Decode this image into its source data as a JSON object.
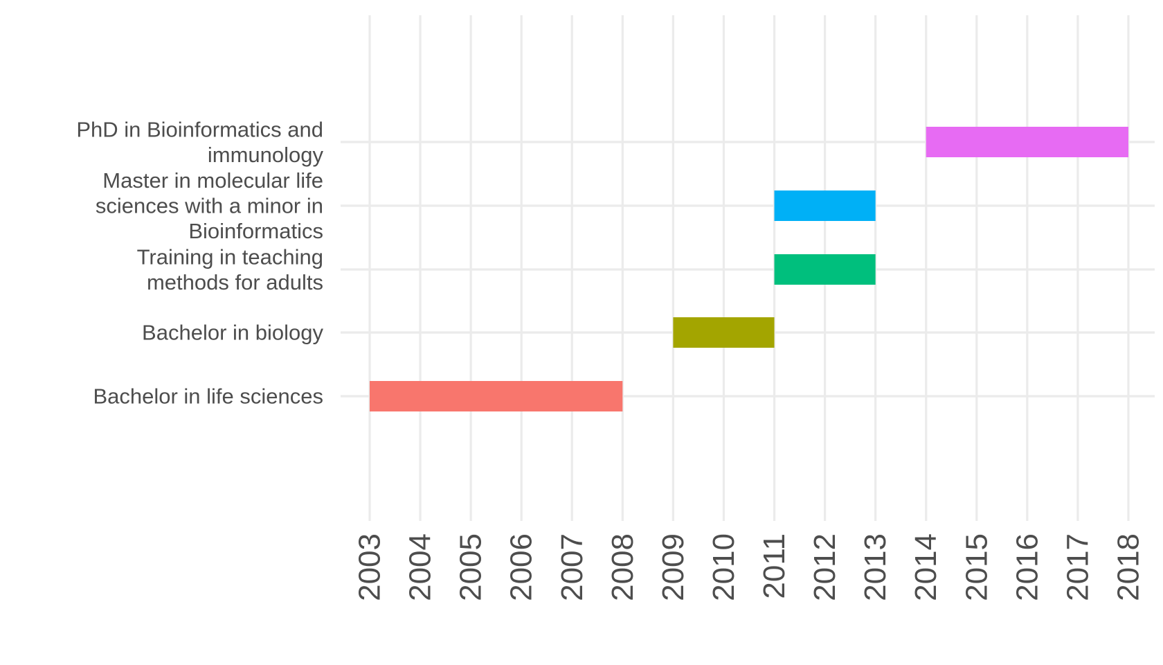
{
  "chart_data": {
    "type": "bar",
    "orientation": "horizontal-gantt",
    "title": "",
    "xlabel": "",
    "ylabel": "",
    "x_ticks": [
      "2003",
      "2004",
      "2005",
      "2006",
      "2007",
      "2008",
      "2009",
      "2010",
      "2011",
      "2012",
      "2013",
      "2014",
      "2015",
      "2016",
      "2017",
      "2018"
    ],
    "xlim": [
      2003,
      2018
    ],
    "grid": true,
    "legend": "none",
    "categories": [
      "Bachelor in life sciences",
      "Bachelor in biology",
      "Training in teaching methods for adults",
      "Master in molecular life sciences with a minor in Bioinformatics",
      "PhD in Bioinformatics and immunology"
    ],
    "category_label_lines": [
      [
        "Bachelor in life sciences"
      ],
      [
        "Bachelor in biology"
      ],
      [
        "Training in teaching",
        "methods for adults"
      ],
      [
        "Master in molecular life",
        "sciences with a minor in",
        "Bioinformatics"
      ],
      [
        "PhD in Bioinformatics and",
        "immunology"
      ]
    ],
    "series": [
      {
        "category": "Bachelor in life sciences",
        "start": 2003,
        "end": 2008,
        "color": "#F8766D"
      },
      {
        "category": "Bachelor in biology",
        "start": 2009,
        "end": 2011,
        "color": "#A3A500"
      },
      {
        "category": "Training in teaching methods for adults",
        "start": 2011,
        "end": 2013,
        "color": "#00BF7D"
      },
      {
        "category": "Master in molecular life sciences with a minor in Bioinformatics",
        "start": 2011,
        "end": 2013,
        "color": "#00B0F6"
      },
      {
        "category": "PhD in Bioinformatics and immunology",
        "start": 2014,
        "end": 2018,
        "color": "#E76BF3"
      }
    ]
  }
}
